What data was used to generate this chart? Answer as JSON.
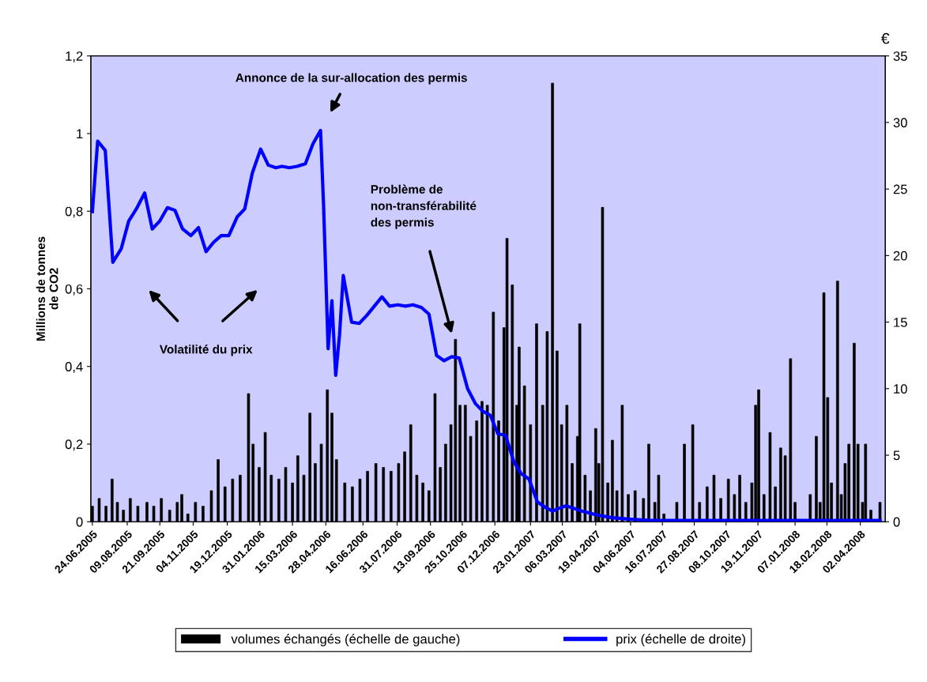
{
  "chart_data": {
    "type": "bar",
    "ylabel": "Millions de tonnes\nde CO2",
    "y2label": "€",
    "annotations": [
      "Annonce de la sur-allocation des permis",
      "Problème de\nnon-transférabilité\ndes permis",
      "Volatilité du prix"
    ],
    "xlim": [
      "2005-06-22",
      "2008-05-05"
    ],
    "xticks": [
      {
        "value": "2005-06-24",
        "label": "24.06.2005"
      },
      {
        "value": "2005-08-09",
        "label": "09.08.2005"
      },
      {
        "value": "2005-09-21",
        "label": "21.09.2005"
      },
      {
        "value": "2005-11-04",
        "label": "04.11.2005"
      },
      {
        "value": "2005-12-19",
        "label": "19.12.2005"
      },
      {
        "value": "2006-01-31",
        "label": "31.01.2006"
      },
      {
        "value": "2006-03-15",
        "label": "15.03.2006"
      },
      {
        "value": "2006-04-28",
        "label": "28.04.2006"
      },
      {
        "value": "2006-06-16",
        "label": "16.06.2006"
      },
      {
        "value": "2006-07-31",
        "label": "31.07.2006"
      },
      {
        "value": "2006-09-13",
        "label": "13.09.2006"
      },
      {
        "value": "2006-10-25",
        "label": "25.10.2006"
      },
      {
        "value": "2006-12-07",
        "label": "07.12.2006"
      },
      {
        "value": "2007-01-23",
        "label": "23.01.2007"
      },
      {
        "value": "2007-03-06",
        "label": "06.03.2007"
      },
      {
        "value": "2007-04-19",
        "label": "19.04.2007"
      },
      {
        "value": "2007-06-04",
        "label": "04.06.2007"
      },
      {
        "value": "2007-07-16",
        "label": "16.07.2007"
      },
      {
        "value": "2007-08-27",
        "label": "27.08.2007"
      },
      {
        "value": "2007-10-08",
        "label": "08.10.2007"
      },
      {
        "value": "2007-11-19",
        "label": "19.11.2007"
      },
      {
        "value": "2008-01-07",
        "label": "07.01.2008"
      },
      {
        "value": "2008-02-18",
        "label": "18.02.2008"
      },
      {
        "value": "2008-04-02",
        "label": "02.04.2008"
      }
    ],
    "ylim": [
      0,
      1.2
    ],
    "yticks": [
      0,
      {
        "value": 0.2,
        "label": "0,2"
      },
      {
        "value": 0.4,
        "label": "0,4"
      },
      {
        "value": 0.6,
        "label": "0,6"
      },
      {
        "value": 0.8,
        "label": "0,8"
      },
      1,
      {
        "value": 1.2,
        "label": "1,2"
      }
    ],
    "y2lim": [
      0,
      35
    ],
    "y2ticks": [
      0,
      5,
      10,
      15,
      20,
      25,
      30,
      35
    ],
    "legend": "bottom",
    "grid": false,
    "series": [
      {
        "name": "volumes échangés (échelle de gauche)",
        "axis": "y",
        "color": "#000000",
        "x": [
          "2005-06-24",
          "2005-07-03",
          "2005-07-12",
          "2005-07-20",
          "2005-07-27",
          "2005-08-04",
          "2005-08-13",
          "2005-08-23",
          "2005-09-04",
          "2005-09-13",
          "2005-09-23",
          "2005-10-04",
          "2005-10-14",
          "2005-10-20",
          "2005-10-28",
          "2005-11-07",
          "2005-11-17",
          "2005-11-28",
          "2005-12-07",
          "2005-12-16",
          "2005-12-26",
          "2006-01-05",
          "2006-01-16",
          "2006-01-22",
          "2006-01-30",
          "2006-02-07",
          "2006-02-15",
          "2006-02-25",
          "2006-03-06",
          "2006-03-15",
          "2006-03-22",
          "2006-03-30",
          "2006-04-07",
          "2006-04-14",
          "2006-04-22",
          "2006-04-30",
          "2006-05-06",
          "2006-05-12",
          "2006-05-23",
          "2006-06-02",
          "2006-06-12",
          "2006-06-22",
          "2006-07-03",
          "2006-07-13",
          "2006-07-23",
          "2006-08-02",
          "2006-08-10",
          "2006-08-18",
          "2006-08-26",
          "2006-09-03",
          "2006-09-11",
          "2006-09-19",
          "2006-09-26",
          "2006-10-03",
          "2006-10-10",
          "2006-10-16",
          "2006-10-22",
          "2006-10-29",
          "2006-11-05",
          "2006-11-13",
          "2006-11-20",
          "2006-11-27",
          "2006-12-05",
          "2006-12-12",
          "2006-12-19",
          "2006-12-23",
          "2006-12-30",
          "2007-01-05",
          "2007-01-08",
          "2007-01-15",
          "2007-01-23",
          "2007-01-31",
          "2007-02-08",
          "2007-02-14",
          "2007-02-21",
          "2007-02-27",
          "2007-03-05",
          "2007-03-12",
          "2007-03-19",
          "2007-03-26",
          "2007-03-29",
          "2007-04-05",
          "2007-04-12",
          "2007-04-19",
          "2007-04-23",
          "2007-04-28",
          "2007-05-05",
          "2007-05-11",
          "2007-05-17",
          "2007-05-24",
          "2007-06-01",
          "2007-06-10",
          "2007-06-21",
          "2007-06-28",
          "2007-07-06",
          "2007-07-11",
          "2007-07-18",
          "2007-08-04",
          "2007-08-14",
          "2007-08-25",
          "2007-09-03",
          "2007-09-13",
          "2007-09-22",
          "2007-10-01",
          "2007-10-11",
          "2007-10-19",
          "2007-10-26",
          "2007-11-03",
          "2007-11-11",
          "2007-11-16",
          "2007-11-20",
          "2007-11-27",
          "2007-12-05",
          "2007-12-12",
          "2007-12-19",
          "2007-12-25",
          "2008-01-01",
          "2008-01-07",
          "2008-01-27",
          "2008-02-04",
          "2008-02-09",
          "2008-02-14",
          "2008-02-19",
          "2008-02-24",
          "2008-03-03",
          "2008-03-08",
          "2008-03-13",
          "2008-03-18",
          "2008-03-25",
          "2008-03-30",
          "2008-04-05",
          "2008-04-09",
          "2008-04-16",
          "2008-04-28"
        ],
        "values": [
          0.04,
          0.06,
          0.04,
          0.11,
          0.05,
          0.03,
          0.06,
          0.04,
          0.05,
          0.04,
          0.06,
          0.03,
          0.05,
          0.07,
          0.02,
          0.05,
          0.04,
          0.08,
          0.16,
          0.09,
          0.11,
          0.12,
          0.33,
          0.2,
          0.14,
          0.23,
          0.12,
          0.11,
          0.14,
          0.1,
          0.17,
          0.12,
          0.28,
          0.15,
          0.2,
          0.34,
          0.28,
          0.16,
          0.1,
          0.09,
          0.11,
          0.13,
          0.15,
          0.14,
          0.13,
          0.15,
          0.18,
          0.25,
          0.12,
          0.1,
          0.08,
          0.33,
          0.14,
          0.2,
          0.25,
          0.47,
          0.3,
          0.3,
          0.22,
          0.26,
          0.31,
          0.3,
          0.54,
          0.26,
          0.5,
          0.73,
          0.61,
          0.3,
          0.45,
          0.35,
          0.25,
          0.51,
          0.3,
          0.49,
          1.13,
          0.44,
          0.25,
          0.3,
          0.15,
          0.22,
          0.51,
          0.12,
          0.08,
          0.24,
          0.15,
          0.81,
          0.1,
          0.21,
          0.08,
          0.3,
          0.07,
          0.08,
          0.06,
          0.2,
          0.05,
          0.12,
          0.02,
          0.05,
          0.2,
          0.25,
          0.05,
          0.09,
          0.12,
          0.06,
          0.11,
          0.07,
          0.12,
          0.05,
          0.1,
          0.3,
          0.34,
          0.07,
          0.23,
          0.09,
          0.19,
          0.17,
          0.42,
          0.05,
          0.07,
          0.22,
          0.05,
          0.59,
          0.32,
          0.1,
          0.62,
          0.07,
          0.15,
          0.2,
          0.46,
          0.2,
          0.05,
          0.2,
          0.03,
          0.05
        ]
      },
      {
        "name": "prix (échelle de droite)",
        "type": "line",
        "axis": "y2",
        "color": "#0000ff",
        "x": [
          "2005-06-24",
          "2005-07-01",
          "2005-07-11",
          "2005-07-21",
          "2005-08-01",
          "2005-08-11",
          "2005-08-21",
          "2005-09-01",
          "2005-09-11",
          "2005-09-21",
          "2005-10-01",
          "2005-10-11",
          "2005-10-21",
          "2005-11-01",
          "2005-11-11",
          "2005-11-21",
          "2005-12-01",
          "2005-12-11",
          "2005-12-21",
          "2006-01-01",
          "2006-01-11",
          "2006-01-21",
          "2006-02-01",
          "2006-02-11",
          "2006-02-21",
          "2006-03-01",
          "2006-03-11",
          "2006-03-21",
          "2006-04-01",
          "2006-04-11",
          "2006-04-21",
          "2006-04-25",
          "2006-05-01",
          "2006-05-06",
          "2006-05-11",
          "2006-05-16",
          "2006-05-21",
          "2006-06-01",
          "2006-06-11",
          "2006-06-21",
          "2006-07-01",
          "2006-07-11",
          "2006-07-21",
          "2006-08-01",
          "2006-08-11",
          "2006-08-21",
          "2006-09-01",
          "2006-09-11",
          "2006-09-21",
          "2006-10-01",
          "2006-10-11",
          "2006-10-21",
          "2006-11-01",
          "2006-11-11",
          "2006-11-21",
          "2006-12-01",
          "2006-12-11",
          "2006-12-21",
          "2007-01-01",
          "2007-01-11",
          "2007-01-21",
          "2007-02-01",
          "2007-02-11",
          "2007-02-21",
          "2007-03-01",
          "2007-03-11",
          "2007-03-21",
          "2007-04-01",
          "2007-04-21",
          "2007-05-11",
          "2007-06-01",
          "2007-07-01",
          "2008-04-28"
        ],
        "values": [
          23.3,
          28.6,
          27.9,
          19.5,
          20.5,
          22.6,
          23.5,
          24.7,
          22,
          22.6,
          23.6,
          23.4,
          22,
          21.5,
          22.1,
          20.3,
          21,
          21.5,
          21.5,
          22.9,
          23.5,
          26.2,
          28,
          26.8,
          26.6,
          26.7,
          26.6,
          26.7,
          26.9,
          28.4,
          29.4,
          23.8,
          13,
          16.6,
          11,
          14,
          18.5,
          15,
          14.9,
          15.5,
          16.2,
          16.9,
          16.2,
          16.3,
          16.2,
          16.3,
          16.1,
          15.6,
          12.5,
          12.1,
          12.4,
          12.3,
          10,
          8.9,
          8.3,
          8,
          6.6,
          6.5,
          4.5,
          3.6,
          3.2,
          1.5,
          1.1,
          0.8,
          1.0,
          1.2,
          1.0,
          0.8,
          0.5,
          0.3,
          0.2,
          0.1,
          0.1
        ]
      }
    ]
  }
}
